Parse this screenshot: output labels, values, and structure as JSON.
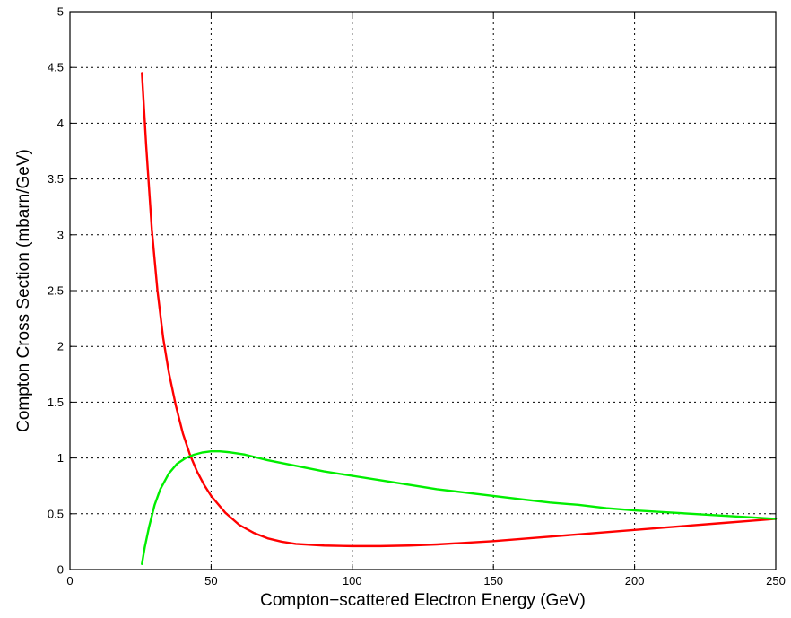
{
  "chart_data": {
    "type": "line",
    "xlabel": "Compton−scattered Electron Energy (GeV)",
    "ylabel": "Compton Cross Section (mbarn/GeV)",
    "xlim": [
      0,
      250
    ],
    "ylim": [
      0,
      5
    ],
    "xticks": [
      0,
      50,
      100,
      150,
      200,
      250
    ],
    "yticks": [
      0,
      0.5,
      1,
      1.5,
      2,
      2.5,
      3,
      3.5,
      4,
      4.5,
      5
    ],
    "xtick_labels": [
      "0",
      "50",
      "100",
      "150",
      "200",
      "250"
    ],
    "ytick_labels": [
      "0",
      "0.5",
      "1",
      "1.5",
      "2",
      "2.5",
      "3",
      "3.5",
      "4",
      "4.5",
      "5"
    ],
    "grid": true,
    "series": [
      {
        "color": "#ff0000",
        "x": [
          25.5,
          27,
          29,
          31,
          33,
          35,
          37.5,
          40,
          42.5,
          45,
          47.5,
          50,
          55,
          60,
          65,
          70,
          75,
          80,
          90,
          100,
          110,
          120,
          130,
          140,
          150,
          160,
          170,
          180,
          190,
          200,
          210,
          220,
          230,
          240,
          250
        ],
        "y": [
          4.45,
          3.8,
          3.05,
          2.5,
          2.08,
          1.77,
          1.47,
          1.22,
          1.03,
          0.88,
          0.76,
          0.66,
          0.51,
          0.4,
          0.33,
          0.28,
          0.25,
          0.23,
          0.215,
          0.21,
          0.21,
          0.215,
          0.225,
          0.24,
          0.255,
          0.275,
          0.295,
          0.315,
          0.335,
          0.355,
          0.375,
          0.395,
          0.415,
          0.435,
          0.455
        ]
      },
      {
        "color": "#00ee00",
        "x": [
          25.5,
          26.5,
          28,
          30,
          32,
          35,
          38,
          41,
          44,
          47,
          50,
          53,
          57,
          62,
          70,
          80,
          90,
          100,
          110,
          120,
          130,
          140,
          150,
          160,
          170,
          180,
          190,
          200,
          210,
          220,
          230,
          240,
          250
        ],
        "y": [
          0.05,
          0.2,
          0.38,
          0.58,
          0.72,
          0.86,
          0.95,
          1.0,
          1.03,
          1.05,
          1.06,
          1.06,
          1.05,
          1.03,
          0.98,
          0.93,
          0.88,
          0.84,
          0.8,
          0.76,
          0.72,
          0.69,
          0.66,
          0.63,
          0.6,
          0.58,
          0.55,
          0.53,
          0.515,
          0.5,
          0.485,
          0.47,
          0.455
        ]
      }
    ]
  }
}
